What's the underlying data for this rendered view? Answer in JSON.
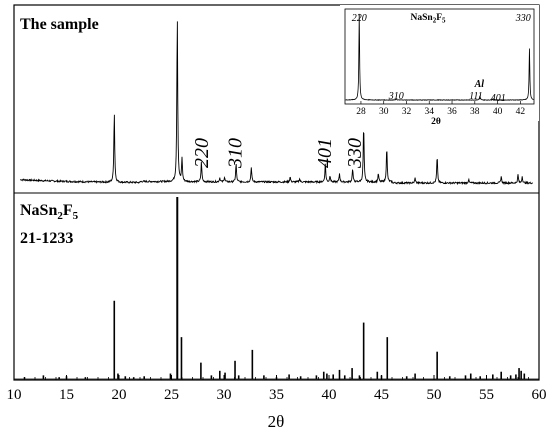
{
  "chart_data": {
    "type": "line",
    "xlabel": "2θ",
    "xlim": [
      10,
      60
    ],
    "xticks": [
      10,
      15,
      20,
      25,
      30,
      35,
      40,
      45,
      50,
      55,
      60
    ],
    "sample": {
      "label": "The sample",
      "peaks": [
        {
          "x": 19.55,
          "h": 0.42
        },
        {
          "x": 25.55,
          "h": 1.0
        },
        {
          "x": 26.0,
          "h": 0.14
        },
        {
          "x": 27.85,
          "h": 0.12
        },
        {
          "x": 29.6,
          "h": 0.025
        },
        {
          "x": 30.05,
          "h": 0.03
        },
        {
          "x": 31.15,
          "h": 0.11
        },
        {
          "x": 32.6,
          "h": 0.09
        },
        {
          "x": 36.3,
          "h": 0.03
        },
        {
          "x": 37.2,
          "h": 0.02
        },
        {
          "x": 39.65,
          "h": 0.11
        },
        {
          "x": 40.1,
          "h": 0.04
        },
        {
          "x": 41.0,
          "h": 0.05
        },
        {
          "x": 42.25,
          "h": 0.08
        },
        {
          "x": 43.3,
          "h": 0.34
        },
        {
          "x": 44.7,
          "h": 0.05
        },
        {
          "x": 45.5,
          "h": 0.21
        },
        {
          "x": 48.2,
          "h": 0.03
        },
        {
          "x": 50.3,
          "h": 0.16
        },
        {
          "x": 53.3,
          "h": 0.02
        },
        {
          "x": 56.4,
          "h": 0.04
        },
        {
          "x": 58.0,
          "h": 0.05
        },
        {
          "x": 58.4,
          "h": 0.04
        }
      ],
      "annotations": [
        {
          "text": "220",
          "x": 27.8
        },
        {
          "text": "310",
          "x": 31.0
        },
        {
          "text": "401",
          "x": 39.5
        },
        {
          "text": "330",
          "x": 42.4
        }
      ]
    },
    "reference": {
      "label_main": "NaSn",
      "label_sub1": "2",
      "label_mid": "F",
      "label_sub2": "5",
      "label_card": "21-1233",
      "lines": [
        {
          "x": 11.0,
          "h": 0.01
        },
        {
          "x": 12.8,
          "h": 0.02
        },
        {
          "x": 14.3,
          "h": 0.01
        },
        {
          "x": 15.0,
          "h": 0.015
        },
        {
          "x": 16.8,
          "h": 0.01
        },
        {
          "x": 19.55,
          "h": 0.43
        },
        {
          "x": 19.9,
          "h": 0.03
        },
        {
          "x": 20.6,
          "h": 0.015
        },
        {
          "x": 21.4,
          "h": 0.01
        },
        {
          "x": 22.4,
          "h": 0.015
        },
        {
          "x": 24.9,
          "h": 0.03
        },
        {
          "x": 25.55,
          "h": 1.0
        },
        {
          "x": 25.95,
          "h": 0.23
        },
        {
          "x": 27.8,
          "h": 0.09
        },
        {
          "x": 28.8,
          "h": 0.02
        },
        {
          "x": 29.6,
          "h": 0.045
        },
        {
          "x": 30.1,
          "h": 0.035
        },
        {
          "x": 31.05,
          "h": 0.1
        },
        {
          "x": 31.4,
          "h": 0.02
        },
        {
          "x": 32.7,
          "h": 0.16
        },
        {
          "x": 33.8,
          "h": 0.02
        },
        {
          "x": 35.0,
          "h": 0.01
        },
        {
          "x": 36.2,
          "h": 0.025
        },
        {
          "x": 37.3,
          "h": 0.015
        },
        {
          "x": 38.8,
          "h": 0.02
        },
        {
          "x": 39.5,
          "h": 0.04
        },
        {
          "x": 39.8,
          "h": 0.03
        },
        {
          "x": 40.4,
          "h": 0.025
        },
        {
          "x": 41.0,
          "h": 0.05
        },
        {
          "x": 41.5,
          "h": 0.02
        },
        {
          "x": 42.2,
          "h": 0.06
        },
        {
          "x": 42.9,
          "h": 0.02
        },
        {
          "x": 43.3,
          "h": 0.31
        },
        {
          "x": 44.6,
          "h": 0.04
        },
        {
          "x": 45.0,
          "h": 0.02
        },
        {
          "x": 45.55,
          "h": 0.23
        },
        {
          "x": 47.4,
          "h": 0.015
        },
        {
          "x": 48.2,
          "h": 0.03
        },
        {
          "x": 50.3,
          "h": 0.15
        },
        {
          "x": 51.5,
          "h": 0.015
        },
        {
          "x": 53.0,
          "h": 0.02
        },
        {
          "x": 53.5,
          "h": 0.03
        },
        {
          "x": 54.4,
          "h": 0.015
        },
        {
          "x": 55.6,
          "h": 0.025
        },
        {
          "x": 56.4,
          "h": 0.04
        },
        {
          "x": 57.3,
          "h": 0.02
        },
        {
          "x": 57.8,
          "h": 0.025
        },
        {
          "x": 58.1,
          "h": 0.06
        },
        {
          "x": 58.3,
          "h": 0.045
        },
        {
          "x": 58.6,
          "h": 0.03
        }
      ]
    },
    "inset": {
      "title_main": "NaSn",
      "title_sub1": "2",
      "title_mid": "F",
      "title_sub2": "5",
      "xlabel": "2θ",
      "xlim": [
        26.6,
        43.2
      ],
      "xticks": [
        28,
        30,
        32,
        34,
        36,
        38,
        40,
        42
      ],
      "peaks": [
        {
          "x": 27.85,
          "h": 1.0
        },
        {
          "x": 31.1,
          "h": 0.015
        },
        {
          "x": 38.45,
          "h": 0.05
        },
        {
          "x": 39.6,
          "h": 0.015
        },
        {
          "x": 42.8,
          "h": 0.6
        }
      ],
      "annotations": [
        {
          "text": "220",
          "x": 27.85,
          "style": "italic"
        },
        {
          "text": "310",
          "x": 31.1,
          "style": "italic"
        },
        {
          "text": "Al",
          "x": 38.4,
          "style": "bold-italic"
        },
        {
          "text": "111",
          "x": 38.1,
          "style": "italic"
        },
        {
          "text": "401",
          "x": 39.7,
          "style": "italic"
        },
        {
          "text": "330",
          "x": 42.6,
          "style": "italic"
        }
      ]
    }
  }
}
